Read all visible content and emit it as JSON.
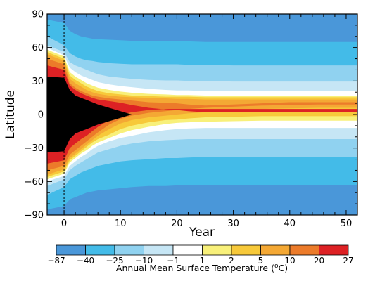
{
  "chart_data": {
    "type": "heatmap",
    "title": "",
    "xlabel": "Year",
    "ylabel": "Latitude",
    "xlim": [
      -3,
      52
    ],
    "ylim": [
      -90,
      90
    ],
    "x_ticks": [
      0,
      10,
      20,
      30,
      40,
      50
    ],
    "y_ticks": [
      90,
      60,
      30,
      0,
      -30,
      -60,
      -90
    ],
    "y_tick_labels": [
      "90",
      "60",
      "30",
      "0",
      "−30",
      "−60",
      "−90"
    ],
    "reference_line_x": 0,
    "colorbar": {
      "title": "Annual Mean Surface Temperature (",
      "title_degree": "o",
      "title_unit": "C)",
      "labels": [
        "−87",
        "−40",
        "−25",
        "−10",
        "−1",
        "1",
        "2",
        "5",
        "10",
        "20",
        "27"
      ],
      "bounds": [
        -87,
        -40,
        -25,
        -10,
        -1,
        1,
        2,
        5,
        10,
        20,
        27
      ],
      "colors": [
        "#4a97d9",
        "#43bbe8",
        "#90d2f0",
        "#c6e6f5",
        "#ffffff",
        "#f8f07a",
        "#f7c93a",
        "#f4a834",
        "#ec7b2a",
        "#dd2124"
      ]
    },
    "contour_boundaries": {
      "years": [
        -3,
        0,
        1,
        2,
        3,
        4,
        5,
        6,
        8,
        10,
        12,
        15,
        18,
        20,
        22,
        25,
        30,
        35,
        40,
        45,
        50,
        52
      ],
      "north": [
        [
          85,
          82,
          75,
          72,
          70,
          69,
          68,
          67.5,
          67,
          66.5,
          66,
          66,
          65.5,
          65.5,
          65.5,
          65,
          65,
          65,
          65,
          65,
          65,
          65
        ],
        [
          70,
          62,
          55,
          52,
          50,
          48.5,
          48,
          47,
          46,
          45.5,
          45,
          45,
          45,
          45,
          44.5,
          44.5,
          44,
          44,
          44,
          44,
          44,
          44
        ],
        [
          62,
          56,
          47,
          44,
          42,
          40,
          38,
          36,
          34,
          33,
          32,
          31,
          30.5,
          30.5,
          30,
          30,
          29.5,
          29.5,
          29.5,
          29.5,
          29.5,
          29.5
        ],
        [
          60,
          53,
          42,
          38,
          35,
          33,
          31,
          29,
          27,
          25.5,
          24.5,
          23,
          22,
          21.5,
          21.5,
          21,
          21,
          21,
          21,
          21,
          21,
          21
        ],
        [
          58,
          52,
          38,
          34,
          31,
          28,
          26,
          24,
          22,
          20.5,
          19.5,
          18.5,
          18,
          17.5,
          17.5,
          17,
          17,
          17,
          17,
          17,
          17,
          17
        ],
        [
          56,
          50,
          35,
          31,
          28,
          25,
          23,
          21,
          19,
          18,
          17,
          16.5,
          16,
          16,
          16,
          15.5,
          15.5,
          15.5,
          15.5,
          15.5,
          15.5,
          15.5
        ],
        [
          54,
          48,
          32,
          28,
          25,
          22,
          20,
          18.5,
          17,
          16,
          15.5,
          15,
          14.5,
          14,
          14,
          13.5,
          13.5,
          13.5,
          13.5,
          13.5,
          13.5,
          13.5
        ],
        [
          50,
          45,
          28,
          24,
          21,
          19,
          17,
          16,
          14.5,
          13.5,
          12.5,
          11,
          10.5,
          10,
          9,
          8,
          9,
          10,
          11,
          11,
          11,
          11
        ],
        [
          44,
          40,
          26,
          22,
          19,
          17,
          15,
          13.5,
          12,
          10.5,
          8.5,
          6,
          4.5,
          4,
          3,
          2,
          2,
          2,
          2,
          2,
          2,
          2
        ],
        [
          34,
          33,
          22,
          17,
          15,
          13,
          11,
          9,
          6,
          3,
          0,
          0,
          0,
          0,
          0,
          0,
          0,
          0,
          0,
          0,
          0,
          0
        ]
      ],
      "south": [
        [
          -85,
          -82,
          -76,
          -74,
          -72,
          -70,
          -69,
          -68,
          -67,
          -66,
          -65,
          -64,
          -64,
          -63.5,
          -63.5,
          -63,
          -63,
          -63,
          -63,
          -63,
          -63,
          -63
        ],
        [
          -72,
          -65,
          -58,
          -55,
          -52,
          -50,
          -48,
          -46,
          -44,
          -42,
          -41,
          -40,
          -39,
          -39,
          -38.5,
          -38,
          -38,
          -38,
          -38,
          -38,
          -38,
          -38
        ],
        [
          -64,
          -58,
          -50,
          -46,
          -43,
          -40,
          -37,
          -34,
          -31,
          -28,
          -26,
          -24,
          -23,
          -22.5,
          -22,
          -22,
          -22,
          -22,
          -22,
          -22,
          -22,
          -22
        ],
        [
          -60,
          -55,
          -46,
          -42,
          -38,
          -35,
          -31,
          -28,
          -24,
          -21,
          -19,
          -16,
          -14,
          -13,
          -12.5,
          -12,
          -12,
          -12,
          -12,
          -12,
          -12,
          -12
        ],
        [
          -58,
          -53,
          -43,
          -39,
          -35,
          -32,
          -28,
          -25,
          -21,
          -17,
          -14,
          -11,
          -8.5,
          -7.5,
          -7,
          -6.5,
          -6,
          -5.5,
          -5.5,
          -5.5,
          -5.5,
          -5.5
        ],
        [
          -56,
          -51,
          -41,
          -37,
          -33,
          -29,
          -25,
          -22,
          -18,
          -13,
          -10,
          -7,
          -5,
          -4.5,
          -3.5,
          -2.5,
          -2,
          -1.5,
          -1.5,
          -1.5,
          -1.5,
          -1.5
        ],
        [
          -54,
          -49,
          -39,
          -35,
          -31,
          -27,
          -23,
          -19,
          -13,
          -8,
          -5,
          -2.5,
          -1,
          0,
          1,
          2,
          4,
          5,
          5.5,
          6,
          6,
          6
        ],
        [
          -50,
          -46,
          -36,
          -32,
          -28,
          -24,
          -20,
          -16,
          -9,
          -4,
          -1,
          1.5,
          3,
          4,
          5,
          6,
          7,
          8,
          8.5,
          9,
          9,
          9
        ],
        [
          -44,
          -41,
          -30,
          -26,
          -22,
          -19,
          -15,
          -11,
          -5,
          0,
          2,
          4,
          5,
          5,
          5,
          5,
          5,
          5,
          5,
          5,
          5,
          5
        ],
        [
          -34,
          -33,
          -22,
          -17,
          -15,
          -13,
          -11,
          -9,
          -6,
          -3,
          0,
          0,
          0,
          0,
          0,
          0,
          0,
          0,
          0,
          0,
          0,
          0
        ]
      ]
    }
  }
}
